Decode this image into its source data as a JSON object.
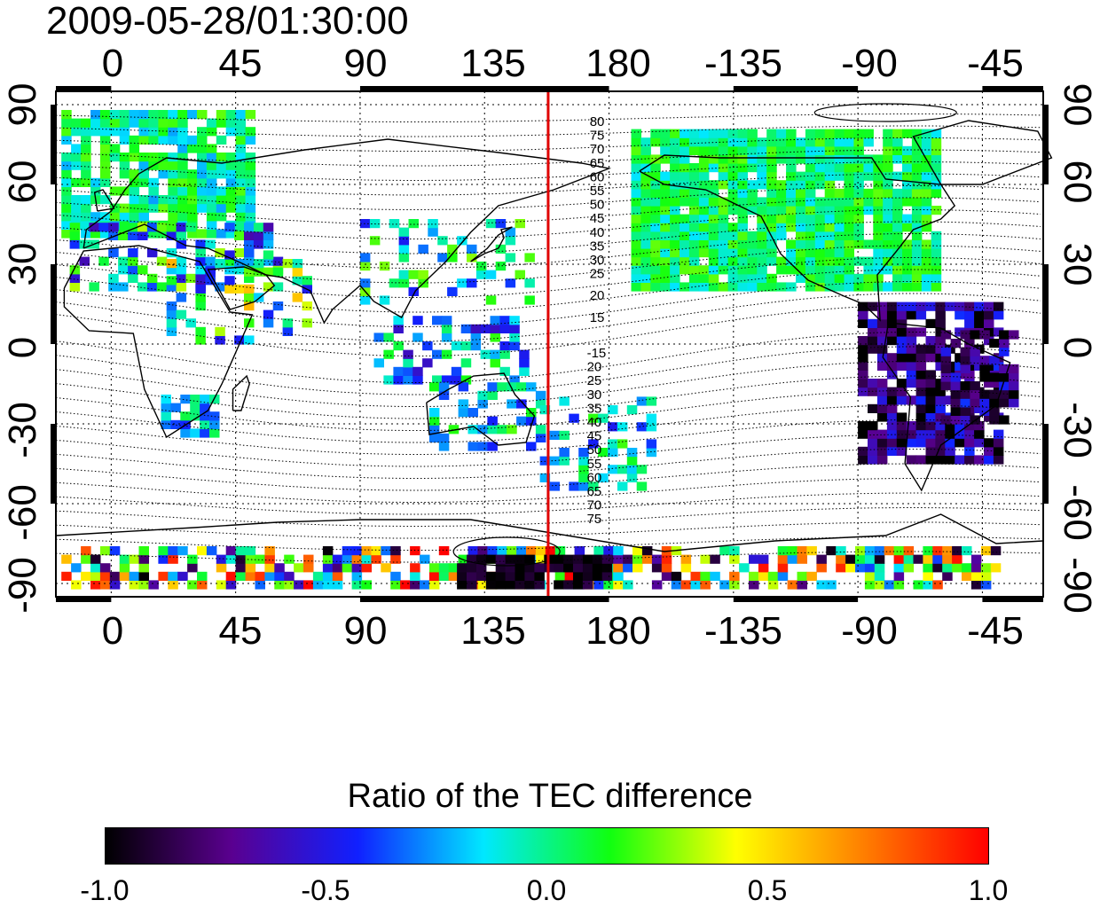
{
  "title": "2009-05-28/01:30:00",
  "axes": {
    "lon_ticks": [
      "0",
      "45",
      "90",
      "135",
      "180",
      "-135",
      "-90",
      "-45"
    ],
    "lon_values": [
      0,
      45,
      90,
      135,
      180,
      225,
      270,
      315
    ],
    "lat_ticks": [
      "90",
      "60",
      "30",
      "0",
      "-30",
      "-60",
      "-90"
    ],
    "lat_values": [
      90,
      60,
      30,
      0,
      -30,
      -60,
      -90
    ],
    "lon_range": [
      -20,
      337
    ],
    "lat_range": [
      -95,
      95
    ],
    "grid": "dotted"
  },
  "marker_line": {
    "lon": 158,
    "color": "#e00000"
  },
  "contour_labels": {
    "north": [
      "80",
      "75",
      "70",
      "65",
      "60",
      "55",
      "50",
      "45",
      "40",
      "35",
      "30",
      "25",
      "20",
      "15"
    ],
    "south": [
      "-15",
      "20",
      "25",
      "30",
      "35",
      "40",
      "45",
      "50",
      "55",
      "60",
      "65",
      "70",
      "75"
    ]
  },
  "colorbar": {
    "title": "Ratio of the TEC difference",
    "range": [
      -1.0,
      1.0
    ],
    "tick_labels": [
      "-1.0",
      "-0.5",
      "0.0",
      "0.5",
      "1.0"
    ],
    "tick_values": [
      -1.0,
      -0.5,
      0.0,
      0.5,
      1.0
    ],
    "colors": [
      "#000000",
      "#5a0090",
      "#1020ff",
      "#00e8ff",
      "#10ff10",
      "#ffff00",
      "#ff8000",
      "#ff0000"
    ]
  }
}
